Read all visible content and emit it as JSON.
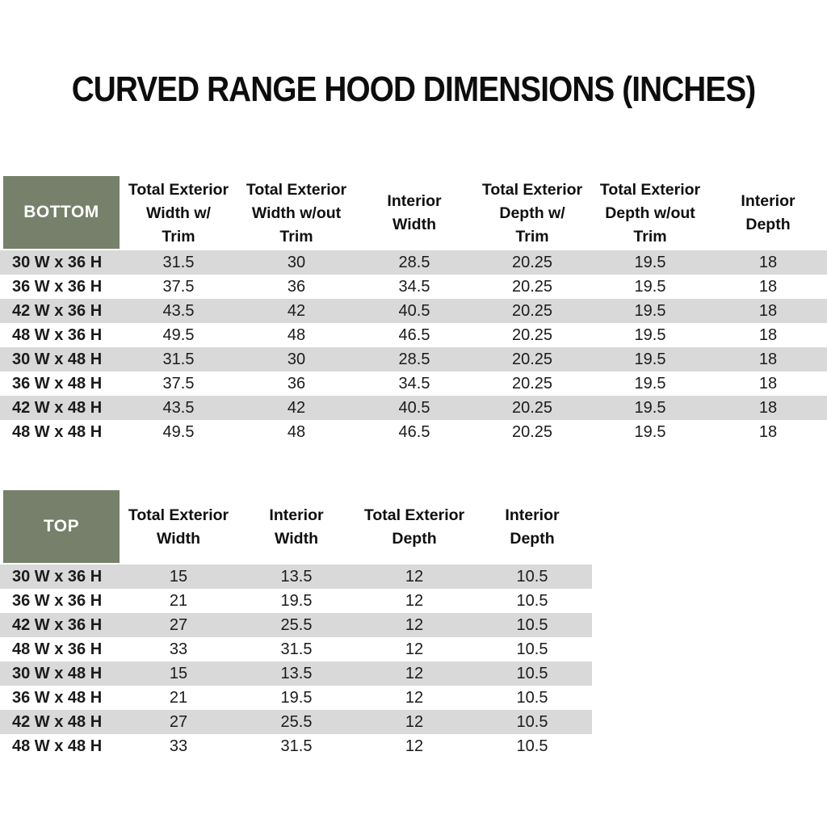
{
  "title": "CURVED RANGE HOOD DIMENSIONS (INCHES)",
  "colors": {
    "header_green": "#76806A",
    "stripe_gray": "#D9D9D9",
    "header_text": "#ffffff",
    "body_text": "#1b1b1b"
  },
  "tables": [
    {
      "name": "BOTTOM",
      "columns": [
        "Total Exterior\nWidth w/\nTrim",
        "Total Exterior\nWidth w/out\nTrim",
        "Interior\nWidth",
        "Total Exterior\nDepth w/\nTrim",
        "Total Exterior\nDepth w/out\nTrim",
        "Interior\nDepth"
      ],
      "rows": [
        {
          "label": "30 W x 36 H",
          "values": [
            "31.5",
            "30",
            "28.5",
            "20.25",
            "19.5",
            "18"
          ]
        },
        {
          "label": "36 W x 36 H",
          "values": [
            "37.5",
            "36",
            "34.5",
            "20.25",
            "19.5",
            "18"
          ]
        },
        {
          "label": "42 W x 36 H",
          "values": [
            "43.5",
            "42",
            "40.5",
            "20.25",
            "19.5",
            "18"
          ]
        },
        {
          "label": "48 W x 36 H",
          "values": [
            "49.5",
            "48",
            "46.5",
            "20.25",
            "19.5",
            "18"
          ]
        },
        {
          "label": "30 W x 48 H",
          "values": [
            "31.5",
            "30",
            "28.5",
            "20.25",
            "19.5",
            "18"
          ]
        },
        {
          "label": "36 W x 48 H",
          "values": [
            "37.5",
            "36",
            "34.5",
            "20.25",
            "19.5",
            "18"
          ]
        },
        {
          "label": "42 W x 48 H",
          "values": [
            "43.5",
            "42",
            "40.5",
            "20.25",
            "19.5",
            "18"
          ]
        },
        {
          "label": "48 W x 48 H",
          "values": [
            "49.5",
            "48",
            "46.5",
            "20.25",
            "19.5",
            "18"
          ]
        }
      ]
    },
    {
      "name": "TOP",
      "columns": [
        "Total Exterior\nWidth",
        "Interior\nWidth",
        "Total Exterior\nDepth",
        "Interior\nDepth"
      ],
      "rows": [
        {
          "label": "30 W x 36 H",
          "values": [
            "15",
            "13.5",
            "12",
            "10.5"
          ]
        },
        {
          "label": "36 W x 36 H",
          "values": [
            "21",
            "19.5",
            "12",
            "10.5"
          ]
        },
        {
          "label": "42 W x 36 H",
          "values": [
            "27",
            "25.5",
            "12",
            "10.5"
          ]
        },
        {
          "label": "48 W x 36 H",
          "values": [
            "33",
            "31.5",
            "12",
            "10.5"
          ]
        },
        {
          "label": "30 W x 48 H",
          "values": [
            "15",
            "13.5",
            "12",
            "10.5"
          ]
        },
        {
          "label": "36 W x 48 H",
          "values": [
            "21",
            "19.5",
            "12",
            "10.5"
          ]
        },
        {
          "label": "42 W x 48 H",
          "values": [
            "27",
            "25.5",
            "12",
            "10.5"
          ]
        },
        {
          "label": "48 W x 48 H",
          "values": [
            "33",
            "31.5",
            "12",
            "10.5"
          ]
        }
      ]
    }
  ]
}
